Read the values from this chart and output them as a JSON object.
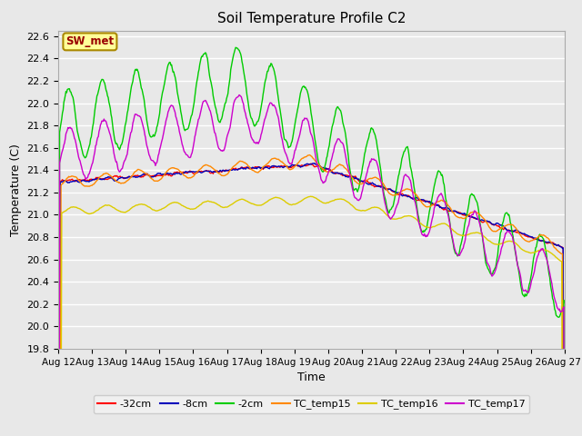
{
  "title": "Soil Temperature Profile C2",
  "xlabel": "Time",
  "ylabel": "Temperature (C)",
  "ylim": [
    19.8,
    22.65
  ],
  "yticks": [
    19.8,
    20.0,
    20.2,
    20.4,
    20.6,
    20.8,
    21.0,
    21.2,
    21.4,
    21.6,
    21.8,
    22.0,
    22.2,
    22.4,
    22.6
  ],
  "background_color": "#e8e8e8",
  "plot_bg_color": "#e8e8e8",
  "grid_color": "#ffffff",
  "legend_labels": [
    "-32cm",
    "-8cm",
    "-2cm",
    "TC_temp15",
    "TC_temp16",
    "TC_temp17"
  ],
  "line_colors": [
    "#ff0000",
    "#0000bb",
    "#00cc00",
    "#ff8800",
    "#ddcc00",
    "#cc00cc"
  ],
  "sw_met_box_color": "#ffff99",
  "sw_met_text_color": "#990000",
  "sw_met_border_color": "#aa8800",
  "n_points": 720,
  "x_start": 12.0,
  "x_end": 27.0,
  "xtick_positions": [
    12,
    13,
    14,
    15,
    16,
    17,
    18,
    19,
    20,
    21,
    22,
    23,
    24,
    25,
    26,
    27
  ],
  "xtick_labels": [
    "Aug 12",
    "Aug 13",
    "Aug 14",
    "Aug 15",
    "Aug 16",
    "Aug 17",
    "Aug 18",
    "Aug 19",
    "Aug 20",
    "Aug 21",
    "Aug 22",
    "Aug 23",
    "Aug 24",
    "Aug 25",
    "Aug 26",
    "Aug 27"
  ]
}
